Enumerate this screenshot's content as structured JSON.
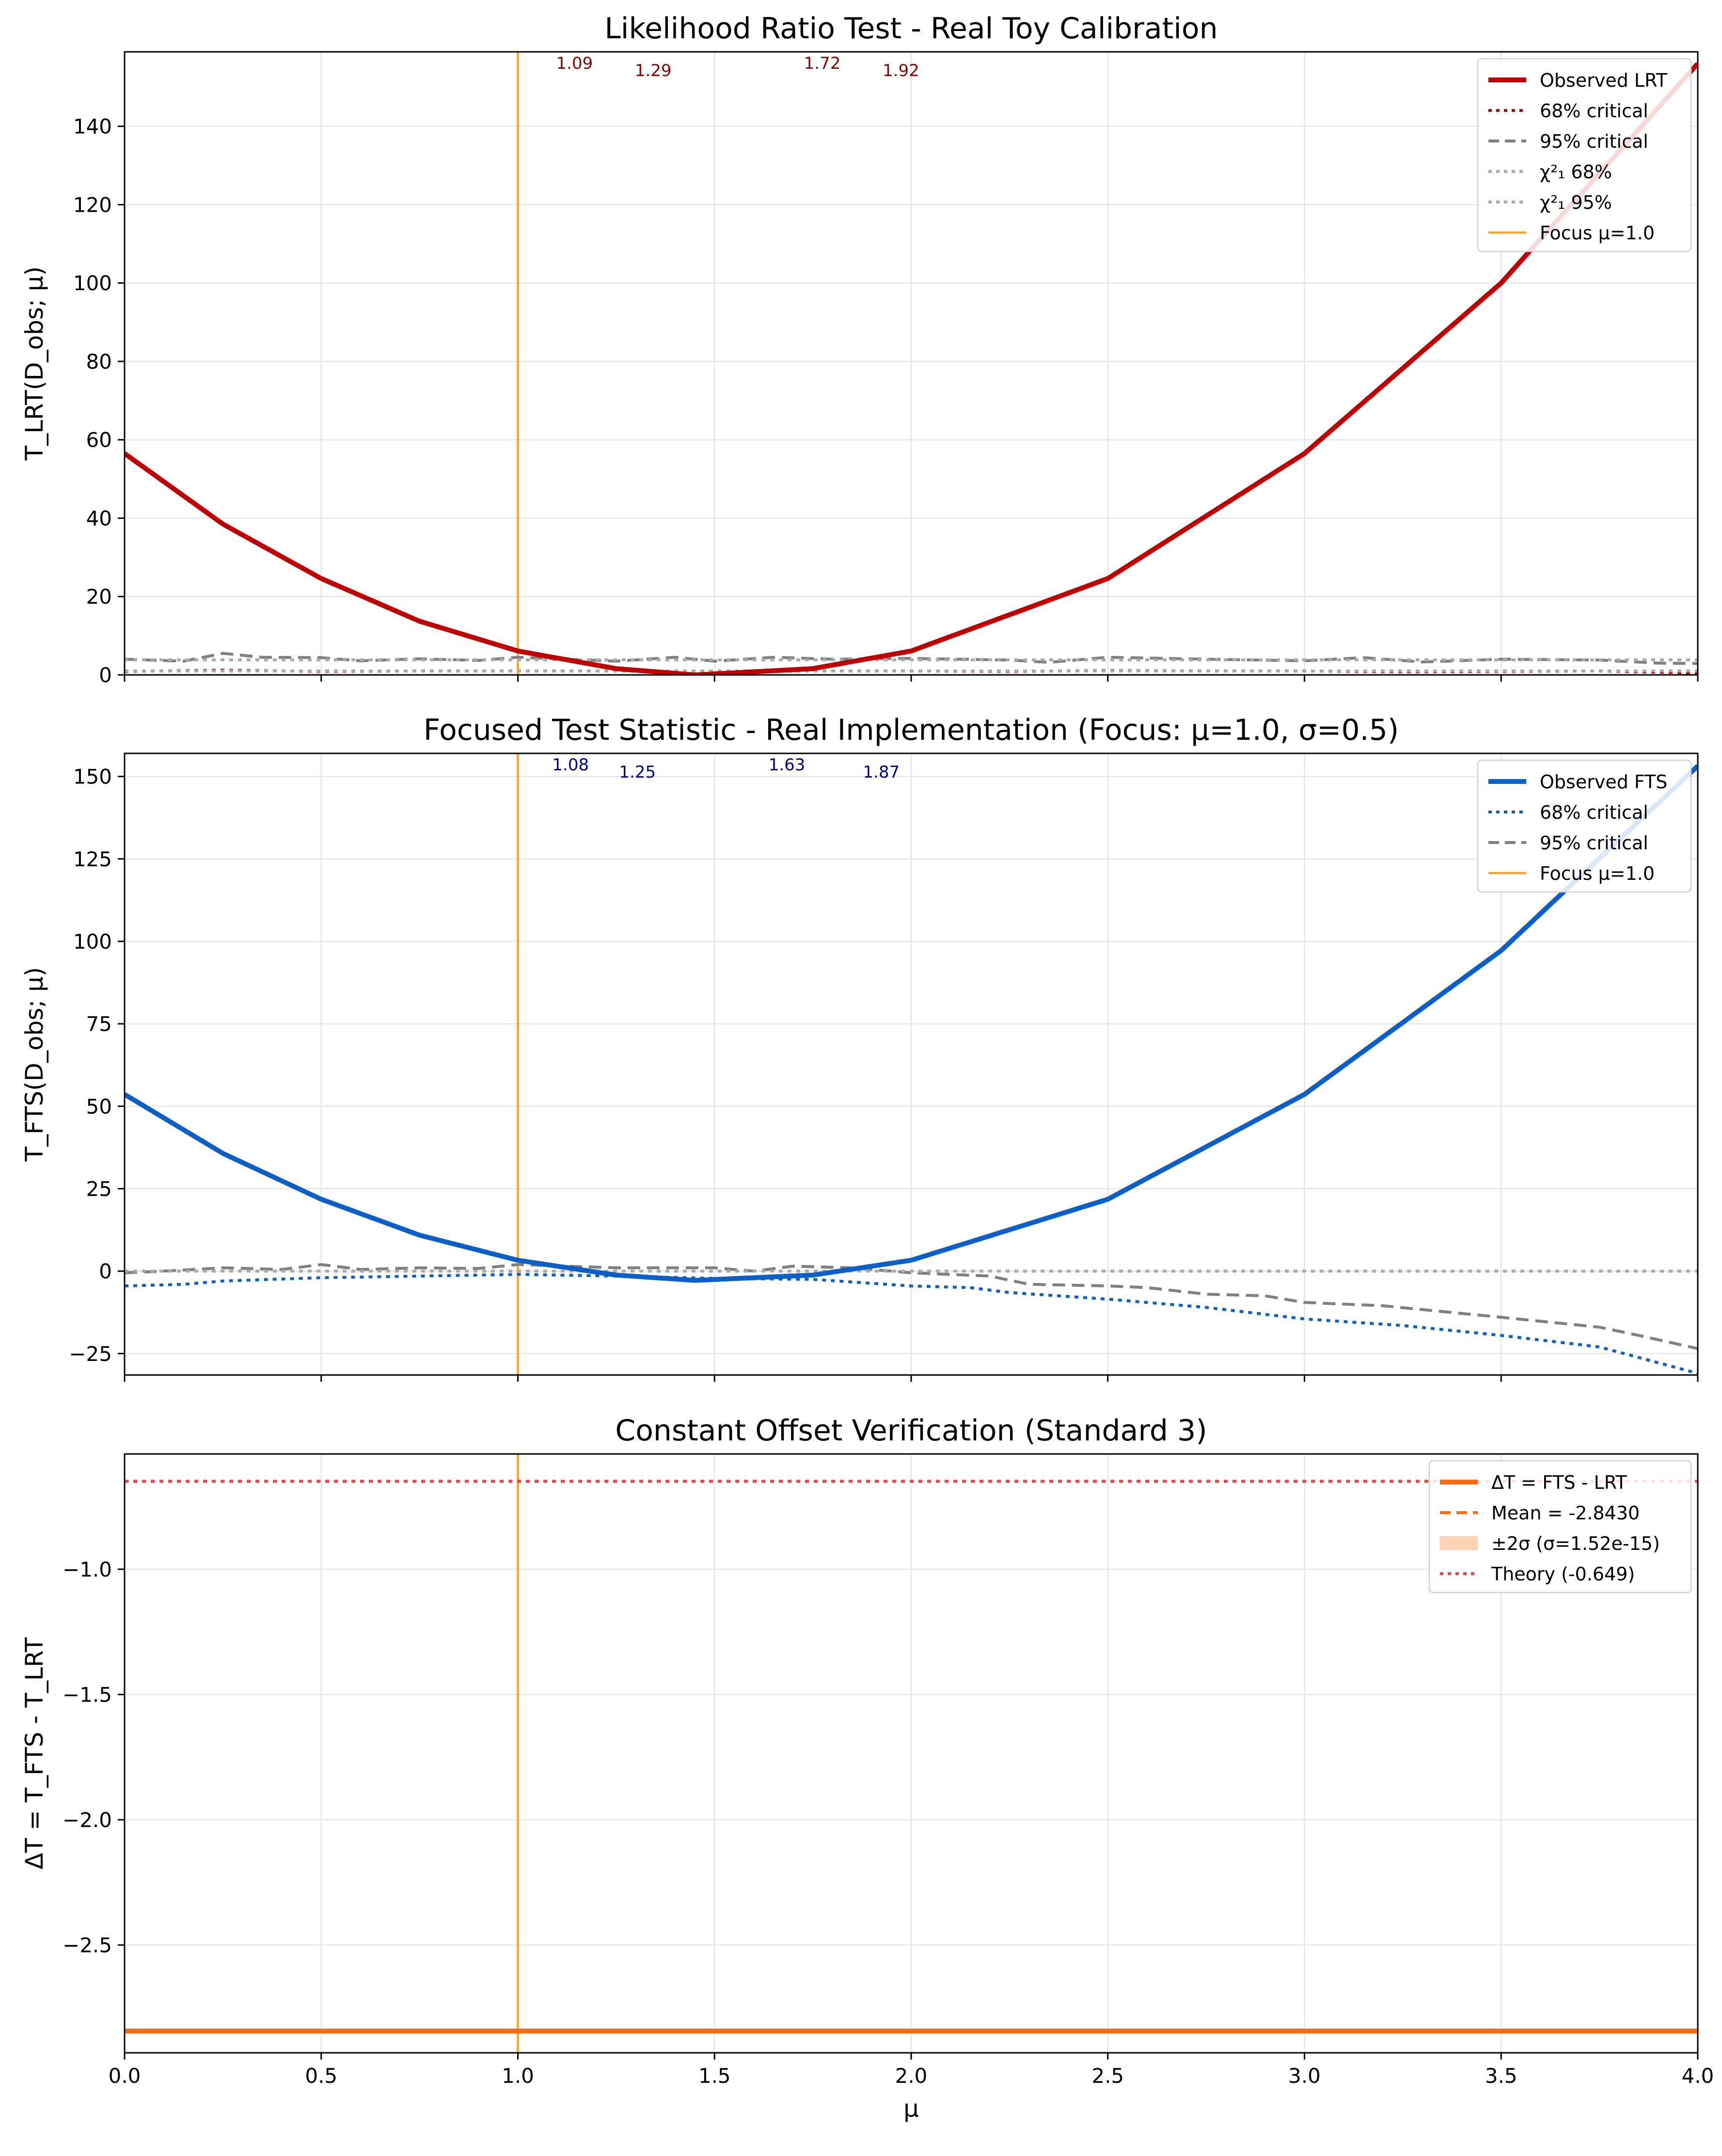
{
  "chart_data": [
    {
      "type": "line",
      "title": "Likelihood Ratio Test - Real Toy Calibration",
      "xlabel": "",
      "ylabel": "T_LRT(D_obs; μ)",
      "xlim": [
        0,
        4
      ],
      "ylim": [
        0,
        159
      ],
      "xticks": [
        0,
        0.5,
        1,
        1.5,
        2,
        2.5,
        3,
        3.5,
        4
      ],
      "yticks": [
        "0",
        "20",
        "40",
        "60",
        "80",
        "100",
        "120",
        "140"
      ],
      "grid": true,
      "legend_position": "top-right",
      "focus_mu": 1.0,
      "colors": {
        "observed": "#c00000",
        "crit68": "#c00000",
        "crit95": "#808080",
        "chi2": "#aaaaaa",
        "focus": "#f5a623",
        "annot": "#8b0000"
      },
      "series": [
        {
          "name": "Observed LRT",
          "style": "solid",
          "x": [
            0,
            0.25,
            0.5,
            0.75,
            1.0,
            1.25,
            1.45,
            1.75,
            2.0,
            2.5,
            3.0,
            3.5,
            4.0
          ],
          "y": [
            56.5,
            38.5,
            24.6,
            13.7,
            6.1,
            1.6,
            0.0,
            1.6,
            6.1,
            24.6,
            56.5,
            100.0,
            156.0
          ]
        },
        {
          "name": "68% critical",
          "style": "dotted",
          "x": [
            0,
            0.25,
            0.5,
            0.75,
            1.0,
            1.25,
            1.5,
            1.75,
            2.0,
            2.25,
            2.5,
            2.75,
            3.0,
            3.25,
            3.5,
            3.75,
            4.0
          ],
          "y": [
            0.9,
            1.2,
            0.9,
            1.0,
            1.0,
            1.0,
            0.8,
            1.0,
            1.0,
            0.9,
            1.1,
            1.0,
            1.0,
            0.8,
            0.9,
            1.0,
            0.5
          ]
        },
        {
          "name": "95% critical",
          "style": "dashed",
          "x": [
            0,
            0.15,
            0.25,
            0.35,
            0.5,
            0.6,
            0.75,
            0.9,
            1.0,
            1.25,
            1.4,
            1.5,
            1.65,
            1.8,
            2.0,
            2.25,
            2.35,
            2.5,
            2.75,
            3.0,
            3.15,
            3.3,
            3.5,
            3.75,
            3.9,
            4.0
          ],
          "y": [
            4.0,
            3.5,
            5.5,
            4.5,
            4.4,
            3.6,
            4.1,
            3.7,
            4.5,
            3.5,
            4.5,
            3.5,
            4.5,
            4.0,
            4.2,
            3.8,
            3.2,
            4.5,
            4.0,
            3.6,
            4.4,
            3.3,
            4.0,
            3.8,
            3.0,
            2.9
          ]
        },
        {
          "name": "χ²₁ 68%",
          "style": "dotted",
          "x": [
            0,
            4
          ],
          "y": [
            1.0,
            1.0
          ]
        },
        {
          "name": "χ²₁ 95%",
          "style": "dotted",
          "x": [
            0,
            4
          ],
          "y": [
            3.84,
            3.84
          ]
        }
      ],
      "focus_label": "Focus μ=1.0",
      "annotations": [
        {
          "x": 1.09,
          "label": "1.09"
        },
        {
          "x": 1.29,
          "label": "1.29"
        },
        {
          "x": 1.72,
          "label": "1.72"
        },
        {
          "x": 1.92,
          "label": "1.92"
        }
      ]
    },
    {
      "type": "line",
      "title": "Focused Test Statistic - Real Implementation (Focus: μ=1.0, σ=0.5)",
      "xlabel": "",
      "ylabel": "T_FTS(D_obs; μ)",
      "xlim": [
        0,
        4
      ],
      "ylim": [
        -31.5,
        157
      ],
      "xticks": [
        0,
        0.5,
        1,
        1.5,
        2,
        2.5,
        3,
        3.5,
        4
      ],
      "yticks": [
        "−25",
        "0",
        "25",
        "50",
        "75",
        "100",
        "125",
        "150"
      ],
      "grid": true,
      "legend_position": "top-right",
      "focus_mu": 1.0,
      "colors": {
        "observed": "#0a5fc8",
        "crit68": "#0a5fc8",
        "crit95": "#808080",
        "zero": "#aaaaaa",
        "focus": "#f5a623",
        "annot": "#00008b"
      },
      "series": [
        {
          "name": "Observed FTS",
          "style": "solid",
          "x": [
            0,
            0.25,
            0.5,
            0.75,
            1.0,
            1.25,
            1.45,
            1.75,
            2.0,
            2.5,
            3.0,
            3.5,
            4.0
          ],
          "y": [
            53.6,
            35.7,
            21.8,
            10.9,
            3.3,
            -1.2,
            -2.8,
            -1.2,
            3.3,
            21.8,
            53.6,
            97.2,
            153.2
          ]
        },
        {
          "name": "68% critical",
          "style": "dotted",
          "x": [
            0,
            0.15,
            0.25,
            0.5,
            0.75,
            1.0,
            1.25,
            1.5,
            1.75,
            2.0,
            2.15,
            2.25,
            2.5,
            2.75,
            3.0,
            3.25,
            3.5,
            3.75,
            4.0
          ],
          "y": [
            -4.5,
            -4.0,
            -3.0,
            -2.0,
            -1.5,
            -1.0,
            -1.5,
            -2.2,
            -2.5,
            -4.5,
            -5.0,
            -6.5,
            -8.5,
            -11.0,
            -14.5,
            -16.5,
            -19.5,
            -23.0,
            -31.0
          ]
        },
        {
          "name": "95% critical",
          "style": "dashed",
          "x": [
            0,
            0.1,
            0.25,
            0.4,
            0.5,
            0.6,
            0.75,
            0.9,
            1.0,
            1.25,
            1.5,
            1.6,
            1.7,
            1.85,
            2.0,
            2.2,
            2.3,
            2.5,
            2.6,
            2.75,
            2.9,
            3.0,
            3.2,
            3.5,
            3.75,
            3.85,
            4.0
          ],
          "y": [
            -0.5,
            0.0,
            1.0,
            0.5,
            2.0,
            0.5,
            1.0,
            0.8,
            2.0,
            1.0,
            1.0,
            0.0,
            1.5,
            1.0,
            -0.5,
            -1.5,
            -4.0,
            -4.5,
            -5.0,
            -7.0,
            -7.5,
            -9.5,
            -10.5,
            -14.0,
            -17.0,
            -19.5,
            -23.5
          ]
        },
        {
          "name": "",
          "style": "dotted",
          "x": [
            0,
            4
          ],
          "y": [
            0,
            0
          ]
        }
      ],
      "focus_label": "Focus μ=1.0",
      "annotations": [
        {
          "x": 1.08,
          "label": "1.08"
        },
        {
          "x": 1.25,
          "label": "1.25"
        },
        {
          "x": 1.63,
          "label": "1.63"
        },
        {
          "x": 1.87,
          "label": "1.87"
        }
      ]
    },
    {
      "type": "line",
      "title": "Constant Offset Verification (Standard 3)",
      "xlabel": "μ",
      "ylabel": "ΔT = T_FTS - T_LRT",
      "xlim": [
        0,
        4
      ],
      "ylim": [
        -2.93,
        -0.54
      ],
      "xticks": [
        0,
        0.5,
        1,
        1.5,
        2,
        2.5,
        3,
        3.5,
        4
      ],
      "xticklabels": [
        "0.0",
        "0.5",
        "1.0",
        "1.5",
        "2.0",
        "2.5",
        "3.0",
        "3.5",
        "4.0"
      ],
      "yticks": [
        "−2.5",
        "−2.0",
        "−1.5",
        "−1.0"
      ],
      "grid": true,
      "legend_position": "top-right",
      "focus_mu": 1.0,
      "colors": {
        "delta": "#ff6a13",
        "mean": "#ff6a13",
        "band": "#fcd2b4",
        "theory": "#ff3b3b",
        "focus": "#f5a623"
      },
      "series": [
        {
          "name": "ΔT = FTS - LRT",
          "style": "solid",
          "x": [
            0,
            4
          ],
          "y": [
            -2.843,
            -2.843
          ]
        },
        {
          "name": "Mean = -2.8430",
          "style": "dashed",
          "x": [
            0,
            4
          ],
          "y": [
            -2.843,
            -2.843
          ]
        },
        {
          "name": "±2σ (σ=1.52e-15)",
          "style": "band",
          "x": [
            0,
            4
          ],
          "y": [
            -2.843,
            -2.843
          ]
        },
        {
          "name": "Theory (-0.649)",
          "style": "dotted",
          "x": [
            0,
            4
          ],
          "y": [
            -0.649,
            -0.649
          ]
        }
      ]
    }
  ]
}
